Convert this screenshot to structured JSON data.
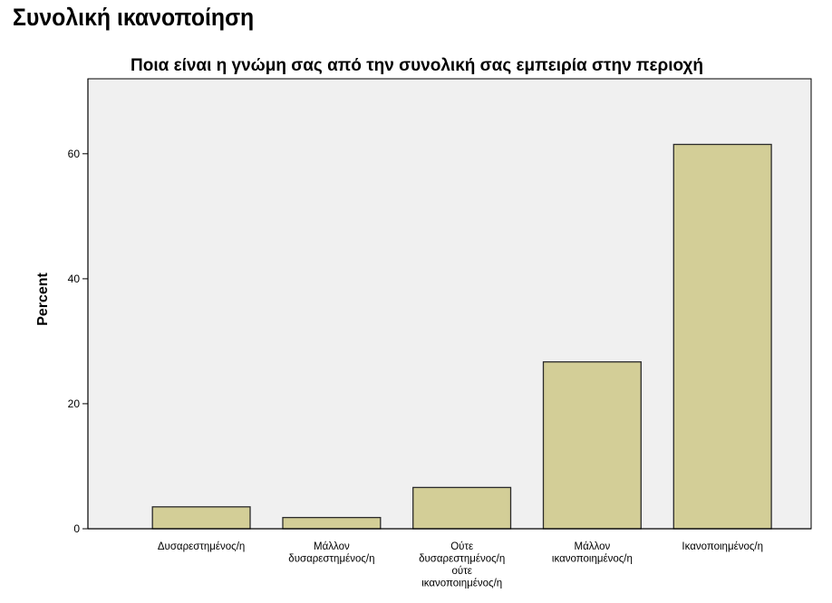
{
  "page": {
    "heading": "Συνολική ικανοποίηση"
  },
  "chart_data": {
    "type": "bar",
    "title": "Ποια είναι η γνώμη σας από την συνολική σας εμπειρία στην περιοχή",
    "xlabel": "",
    "ylabel": "Percent",
    "ylim": [
      0,
      72
    ],
    "yticks": [
      0,
      20,
      40,
      60
    ],
    "categories": [
      [
        "Δυσαρεστημένος/η"
      ],
      [
        "Μάλλον",
        "δυσαρεστημένος/η"
      ],
      [
        "Ούτε",
        "δυσαρεστημένος/η",
        "ούτε",
        "ικανοποιημένος/η"
      ],
      [
        "Μάλλον",
        "ικανοποιημένος/η"
      ],
      [
        "Ικανοποιημένος/η"
      ]
    ],
    "values": [
      3.5,
      1.8,
      6.6,
      26.7,
      61.5
    ],
    "grid": false,
    "legend": "none",
    "colors": {
      "bar_fill": "#d3ce97",
      "bar_stroke": "#2b2b2b",
      "plot_background": "#f0f0f0"
    }
  }
}
